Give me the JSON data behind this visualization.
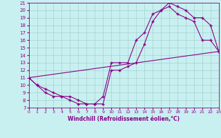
{
  "title": "",
  "xlabel": "Windchill (Refroidissement éolien,°C)",
  "bg_color": "#c8f0f0",
  "line_color": "#880088",
  "grid_color": "#a0c8c8",
  "marker": "+",
  "markersize": 3.5,
  "markeredgewidth": 1.0,
  "linewidth": 0.8,
  "xlim": [
    0,
    23
  ],
  "ylim": [
    7,
    21
  ],
  "xticks": [
    0,
    1,
    2,
    3,
    4,
    5,
    6,
    7,
    8,
    9,
    10,
    11,
    12,
    13,
    14,
    15,
    16,
    17,
    18,
    19,
    20,
    21,
    22,
    23
  ],
  "yticks": [
    7,
    8,
    9,
    10,
    11,
    12,
    13,
    14,
    15,
    16,
    17,
    18,
    19,
    20,
    21
  ],
  "line1_x": [
    0,
    1,
    2,
    3,
    4,
    5,
    6,
    7,
    8,
    9,
    10,
    11,
    12,
    13,
    14,
    15,
    16,
    17,
    18,
    19,
    20,
    21,
    22,
    23
  ],
  "line1_y": [
    11,
    10,
    9.5,
    9,
    8.5,
    8,
    7.5,
    7.5,
    7.5,
    7.5,
    12,
    12,
    12.5,
    13,
    15.5,
    18.5,
    20,
    21,
    20.5,
    20,
    19,
    19,
    18,
    14.5
  ],
  "line2_x": [
    0,
    1,
    2,
    3,
    4,
    5,
    6,
    7,
    8,
    9,
    10,
    11,
    12,
    13,
    14,
    15,
    16,
    17,
    18,
    19,
    20,
    21,
    22,
    23
  ],
  "line2_y": [
    11,
    10,
    9,
    8.5,
    8.5,
    8.5,
    8,
    7.5,
    7.5,
    8.5,
    13,
    13,
    13,
    16,
    17,
    19.5,
    20,
    20.5,
    19.5,
    19,
    18.5,
    16,
    16,
    14.5
  ],
  "line3_x": [
    0,
    23
  ],
  "line3_y": [
    11,
    14.5
  ]
}
